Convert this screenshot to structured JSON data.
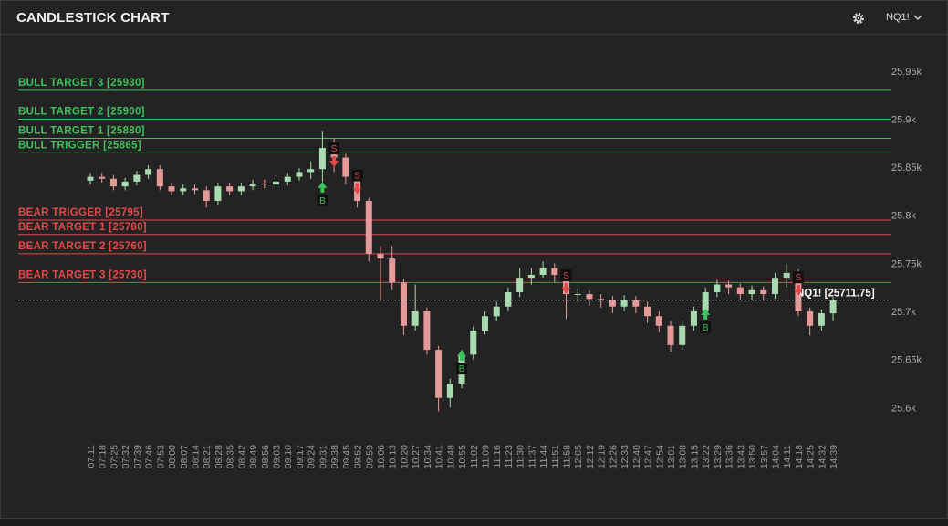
{
  "header": {
    "title": "CANDLESTICK CHART",
    "symbol": "NQ1!"
  },
  "chart_data": {
    "type": "candlestick",
    "categories": [
      "07:11",
      "07:18",
      "07:25",
      "07:32",
      "07:39",
      "07:46",
      "07:53",
      "08:00",
      "08:07",
      "08:14",
      "08:21",
      "08:28",
      "08:35",
      "08:42",
      "08:49",
      "08:56",
      "09:03",
      "09:10",
      "09:17",
      "09:24",
      "09:31",
      "09:38",
      "09:45",
      "09:52",
      "09:59",
      "10:06",
      "10:13",
      "10:20",
      "10:27",
      "10:34",
      "10:41",
      "10:48",
      "10:55",
      "11:02",
      "11:09",
      "11:16",
      "11:23",
      "11:30",
      "11:37",
      "11:44",
      "11:51",
      "11:58",
      "12:05",
      "12:12",
      "12:19",
      "12:26",
      "12:33",
      "12:40",
      "12:47",
      "12:54",
      "13:01",
      "13:08",
      "13:15",
      "13:22",
      "13:29",
      "13:36",
      "13:43",
      "13:50",
      "13:57",
      "14:04",
      "14:11",
      "14:18",
      "14:25",
      "14:32",
      "14:39"
    ],
    "open": [
      25836,
      25840,
      25838,
      25830,
      25835,
      25842,
      25848,
      25830,
      25825,
      25828,
      25826,
      25815,
      25830,
      25825,
      25830,
      25833,
      25832,
      25835,
      25840,
      25845,
      25848,
      25870,
      25860,
      25840,
      25815,
      25760,
      25755,
      25730,
      25685,
      25700,
      25660,
      25610,
      25625,
      25655,
      25680,
      25695,
      25705,
      25720,
      25735,
      25738,
      25745,
      25738,
      25718,
      25718,
      25713,
      25712,
      25705,
      25712,
      25705,
      25695,
      25685,
      25665,
      25685,
      25700,
      25720,
      25728,
      25725,
      25718,
      25722,
      25718,
      25735,
      25740,
      25700,
      25685,
      25698
    ],
    "high": [
      25844,
      25844,
      25842,
      25839,
      25846,
      25852,
      25852,
      25834,
      25832,
      25832,
      25830,
      25834,
      25834,
      25834,
      25837,
      25837,
      25839,
      25844,
      25849,
      25856,
      25888,
      25880,
      25864,
      25845,
      25818,
      25768,
      25768,
      25734,
      25728,
      25704,
      25664,
      25630,
      25660,
      25684,
      25700,
      25710,
      25725,
      25745,
      25745,
      25752,
      25750,
      25742,
      25724,
      25722,
      25718,
      25716,
      25717,
      25716,
      25710,
      25700,
      25690,
      25690,
      25705,
      25725,
      25733,
      25732,
      25729,
      25727,
      25726,
      25740,
      25750,
      25744,
      25704,
      25702,
      25715
    ],
    "low": [
      25832,
      25834,
      25826,
      25826,
      25831,
      25838,
      25826,
      25821,
      25821,
      25822,
      25808,
      25811,
      25821,
      25821,
      25826,
      25828,
      25828,
      25831,
      25836,
      25838,
      25835,
      25845,
      25832,
      25808,
      25752,
      25712,
      25722,
      25675,
      25680,
      25655,
      25596,
      25600,
      25620,
      25650,
      25676,
      25690,
      25700,
      25715,
      25728,
      25735,
      25730,
      25692,
      25710,
      25706,
      25704,
      25698,
      25700,
      25698,
      25688,
      25678,
      25658,
      25660,
      25680,
      25695,
      25715,
      25718,
      25712,
      25712,
      25712,
      25713,
      25725,
      25695,
      25675,
      25680,
      25690
    ],
    "close": [
      25840,
      25838,
      25830,
      25835,
      25842,
      25848,
      25830,
      25825,
      25828,
      25826,
      25815,
      25830,
      25825,
      25830,
      25833,
      25832,
      25835,
      25840,
      25845,
      25848,
      25870,
      25860,
      25840,
      25815,
      25760,
      25755,
      25730,
      25685,
      25700,
      25660,
      25610,
      25625,
      25655,
      25680,
      25695,
      25705,
      25720,
      25735,
      25738,
      25745,
      25738,
      25718,
      25718,
      25713,
      25712,
      25705,
      25712,
      25705,
      25695,
      25685,
      25665,
      25685,
      25700,
      25720,
      25728,
      25725,
      25718,
      25722,
      25718,
      25735,
      25740,
      25700,
      25685,
      25698,
      25711.75
    ],
    "up_color": "#a8dcb0",
    "down_color": "#e59a9a",
    "ylim": [
      25567,
      25985
    ],
    "yticks": [
      {
        "value": 25600,
        "label": "25.6k"
      },
      {
        "value": 25650,
        "label": "25.65k"
      },
      {
        "value": 25700,
        "label": "25.7k"
      },
      {
        "value": 25750,
        "label": "25.75k"
      },
      {
        "value": 25800,
        "label": "25.8k"
      },
      {
        "value": 25850,
        "label": "25.85k"
      },
      {
        "value": 25900,
        "label": "25.9k"
      },
      {
        "value": 25950,
        "label": "25.95k"
      }
    ],
    "grid": false,
    "levels": [
      {
        "label": "BULL TARGET 3 [25930]",
        "value": 25930,
        "color": "#3fc15c"
      },
      {
        "label": "BULL TARGET 2 [25900]",
        "value": 25900,
        "color": "#3fc15c"
      },
      {
        "label": "BULL TARGET 1 [25880]",
        "value": 25880,
        "color": "#3fc15c"
      },
      {
        "label": "BULL TRIGGER [25865]",
        "value": 25865,
        "color": "#3fc15c"
      },
      {
        "label": "BEAR TRIGGER [25795]",
        "value": 25795,
        "color": "#e24a4a"
      },
      {
        "label": "BEAR TARGET 1 [25780]",
        "value": 25780,
        "color": "#e24a4a"
      },
      {
        "label": "BEAR TARGET 2 [25760]",
        "value": 25760,
        "color": "#e24a4a"
      },
      {
        "label": "BEAR TARGET 3 [25730]",
        "value": 25730,
        "color": "#e24a4a"
      }
    ],
    "last_price": {
      "label": "NQ1! [25711.75]",
      "value": 25711.75
    },
    "signals": [
      {
        "label": "B",
        "x": "09:31",
        "price": 25835
      },
      {
        "label": "S",
        "x": "09:38",
        "price": 25850
      },
      {
        "label": "S",
        "x": "09:52",
        "price": 25822
      },
      {
        "label": "B",
        "x": "10:55",
        "price": 25660
      },
      {
        "label": "S",
        "x": "11:58",
        "price": 25718
      },
      {
        "label": "B",
        "x": "13:22",
        "price": 25703
      },
      {
        "label": "S",
        "x": "14:18",
        "price": 25716
      }
    ]
  }
}
